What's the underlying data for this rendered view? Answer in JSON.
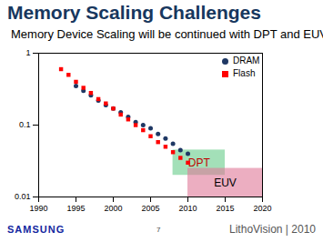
{
  "chart_data": {
    "type": "scatter",
    "title": "Memory Scaling Challenges",
    "subtitle": "Memory Device Scaling will be continued with DPT and EUV",
    "log": "y",
    "grid": false,
    "legend": "top-right",
    "xlim": [
      1990,
      2020
    ],
    "xticks": [
      1990,
      1995,
      2000,
      2005,
      2010,
      2015,
      2020
    ],
    "ylim": [
      0.01,
      1
    ],
    "yticks": [
      0.01,
      0.1,
      1
    ],
    "series": [
      {
        "name": "DRAM",
        "color": "#1f3864",
        "marker": "circle",
        "x": [
          1995,
          1996,
          1997,
          1998,
          1999,
          2000,
          2001,
          2002,
          2003,
          2004,
          2005,
          2006,
          2007,
          2008,
          2009,
          2010
        ],
        "values": [
          0.35,
          0.3,
          0.26,
          0.22,
          0.19,
          0.17,
          0.15,
          0.13,
          0.11,
          0.1,
          0.09,
          0.075,
          0.065,
          0.055,
          0.045,
          0.04
        ]
      },
      {
        "name": "Flash",
        "color": "#ff0000",
        "marker": "square",
        "x": [
          1993,
          1994,
          1995,
          1996,
          1997,
          1998,
          1999,
          2000,
          2001,
          2002,
          2003,
          2004,
          2005,
          2006,
          2007,
          2008,
          2009,
          2010
        ],
        "values": [
          0.6,
          0.5,
          0.4,
          0.33,
          0.28,
          0.23,
          0.2,
          0.17,
          0.14,
          0.12,
          0.1,
          0.085,
          0.07,
          0.058,
          0.05,
          0.042,
          0.035,
          0.03
        ]
      }
    ],
    "regions": [
      {
        "label": "DPT",
        "x": [
          2008,
          2015
        ],
        "y": [
          0.02,
          0.045
        ],
        "color": "#66cc88",
        "label_color": "#c00000"
      },
      {
        "label": "EUV",
        "x": [
          2010,
          2020
        ],
        "y": [
          0.01,
          0.025
        ],
        "color": "#e07898",
        "label_color": "#000000"
      }
    ]
  },
  "slide": {
    "footer_left": "SAMSUNG",
    "page": "7",
    "footer_right": "LithoVision | 2010"
  }
}
